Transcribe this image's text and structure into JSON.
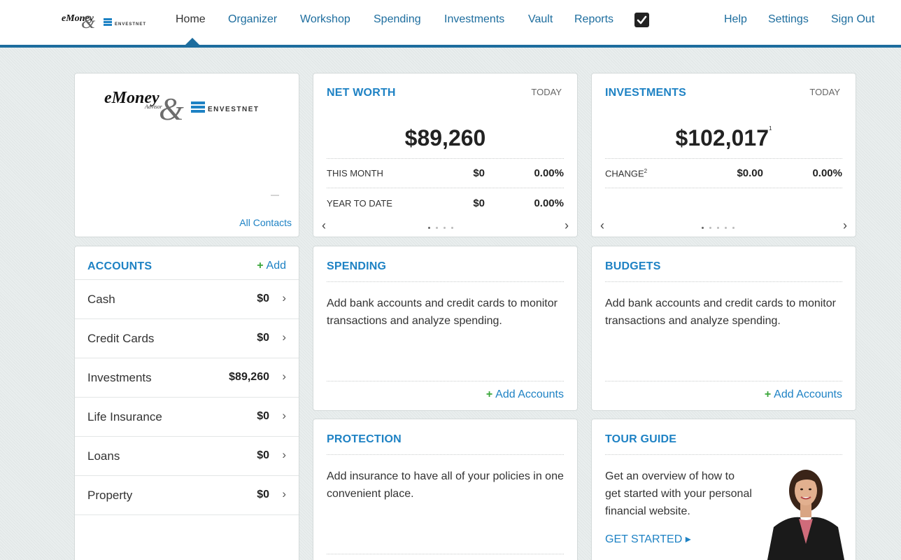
{
  "header": {
    "logo_alt": "eMoney & Envestnet",
    "nav": [
      "Home",
      "Organizer",
      "Workshop",
      "Spending",
      "Investments",
      "Vault",
      "Reports"
    ],
    "right_nav": [
      "Help",
      "Settings",
      "Sign Out"
    ]
  },
  "profile": {
    "dash": "—",
    "all_contacts": "All Contacts"
  },
  "net_worth": {
    "title": "NET WORTH",
    "period": "TODAY",
    "total": "$89,260",
    "rows": [
      {
        "label": "THIS MONTH",
        "amount": "$0",
        "percent": "0.00%"
      },
      {
        "label": "YEAR TO DATE",
        "amount": "$0",
        "percent": "0.00%"
      }
    ],
    "pager_count": 4,
    "prev": "‹",
    "next": "›"
  },
  "investments": {
    "title": "INVESTMENTS",
    "period": "TODAY",
    "total": "$102,017",
    "total_footnote": "1",
    "change_label": "CHANGE",
    "change_footnote": "2",
    "change_amount": "$0.00",
    "change_percent": "0.00%",
    "pager_count": 5,
    "prev": "‹",
    "next": "›"
  },
  "accounts": {
    "title": "ACCOUNTS",
    "add_label": "Add",
    "items": [
      {
        "name": "Cash",
        "value": "$0"
      },
      {
        "name": "Credit Cards",
        "value": "$0"
      },
      {
        "name": "Investments",
        "value": "$89,260"
      },
      {
        "name": "Life Insurance",
        "value": "$0"
      },
      {
        "name": "Loans",
        "value": "$0"
      },
      {
        "name": "Property",
        "value": "$0"
      }
    ],
    "chevron": "›"
  },
  "spending": {
    "title": "SPENDING",
    "text": "Add bank accounts and credit cards to monitor transactions and analyze spending.",
    "action": "Add Accounts"
  },
  "budgets": {
    "title": "BUDGETS",
    "text": "Add bank accounts and credit cards to monitor transactions and analyze spending.",
    "action": "Add Accounts"
  },
  "protection": {
    "title": "PROTECTION",
    "text": "Add insurance to have all of your policies in one convenient place."
  },
  "tour_guide": {
    "title": "TOUR GUIDE",
    "text": "Get an overview of how to get started with your personal financial website.",
    "action": "GET STARTED ▸"
  },
  "colors": {
    "accent": "#1e82c4",
    "nav_border": "#1d6d9e",
    "add_plus": "#3aa63a"
  }
}
